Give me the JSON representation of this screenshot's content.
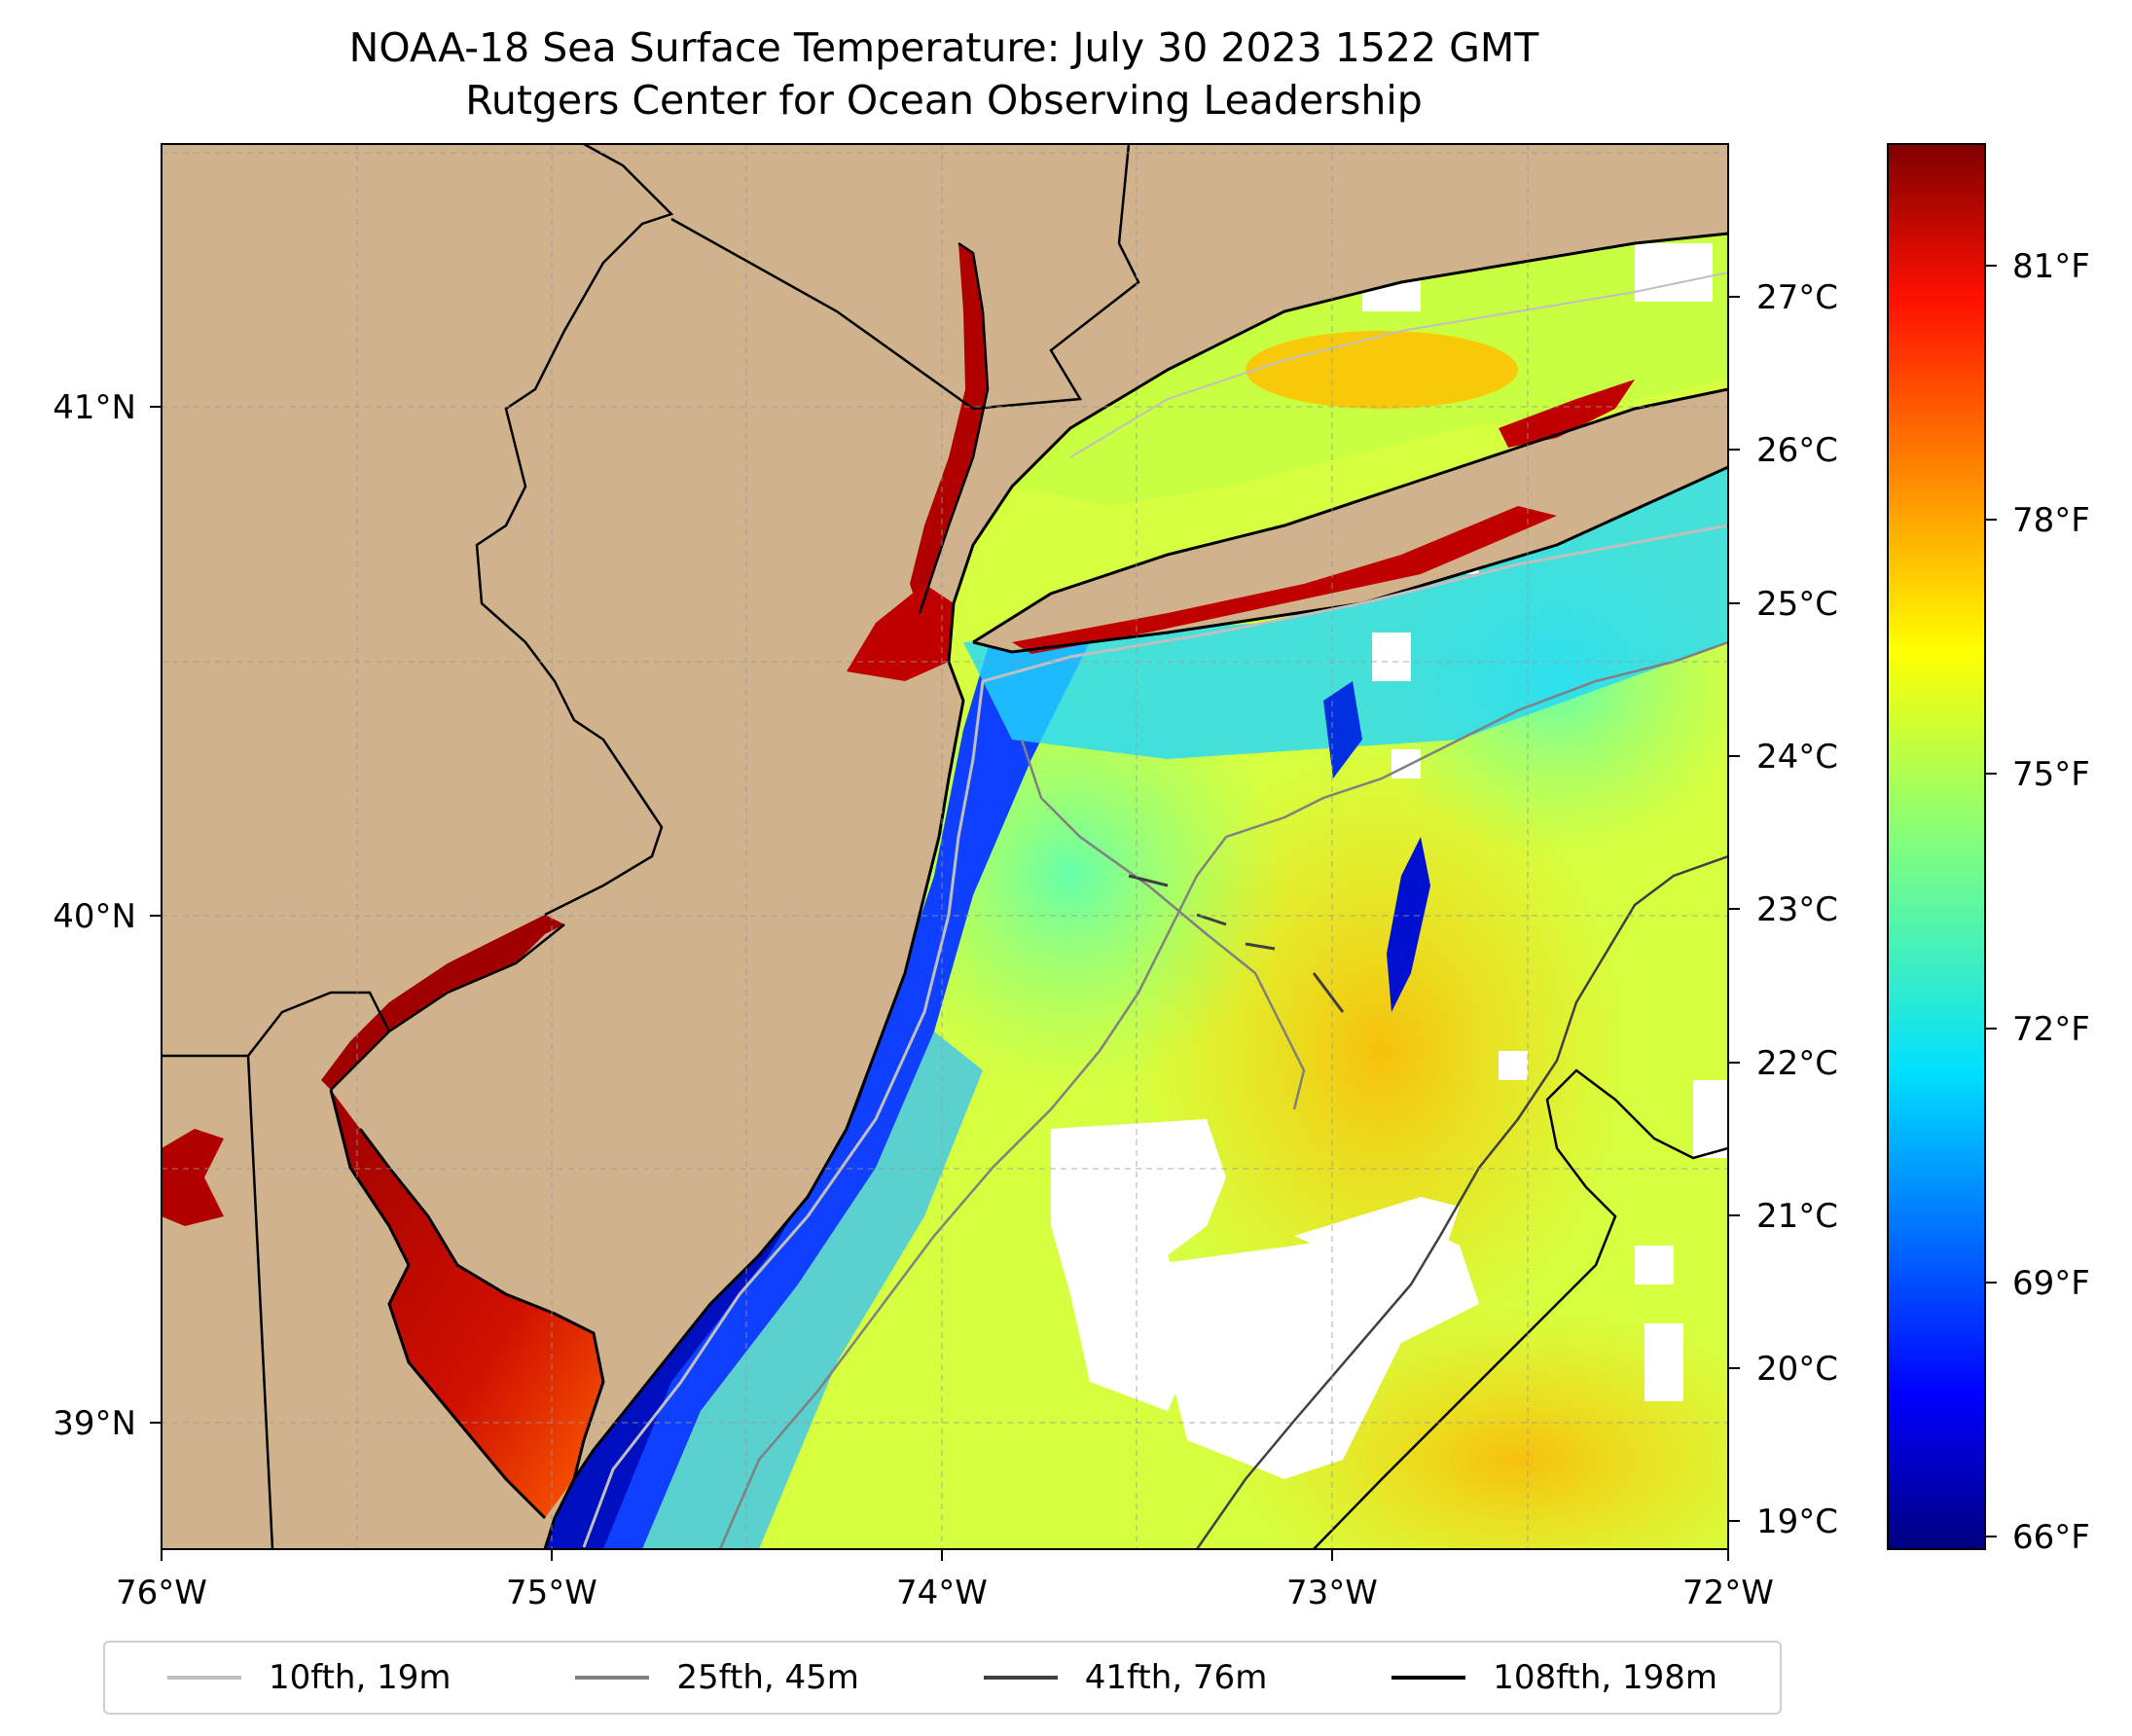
{
  "title": {
    "line1": "NOAA-18 Sea Surface Temperature: July 30 2023 1522 GMT",
    "line2": "Rutgers Center for Ocean Observing Leadership"
  },
  "map": {
    "x_ticks": [
      "76°W",
      "75°W",
      "74°W",
      "73°W",
      "72°W"
    ],
    "y_ticks": [
      "41°N",
      "40°N",
      "39°N"
    ],
    "lon_range": [
      -76,
      -72
    ],
    "lat_range": [
      38.75,
      41.52
    ],
    "land_color": "#d0b38c",
    "no_data_color": "#ffffff"
  },
  "colorbar": {
    "celsius_ticks": [
      "27°C",
      "26°C",
      "25°C",
      "24°C",
      "23°C",
      "22°C",
      "21°C",
      "20°C",
      "19°C"
    ],
    "fahrenheit_ticks": [
      "81°F",
      "78°F",
      "75°F",
      "72°F",
      "69°F",
      "66°F"
    ],
    "colormap": "jet"
  },
  "legend": {
    "items": [
      {
        "label": "10fth, 19m",
        "color": "#bfbfbf"
      },
      {
        "label": "25fth, 45m",
        "color": "#808080"
      },
      {
        "label": "41fth, 76m",
        "color": "#404040"
      },
      {
        "label": "108fth, 198m",
        "color": "#000000"
      }
    ]
  }
}
